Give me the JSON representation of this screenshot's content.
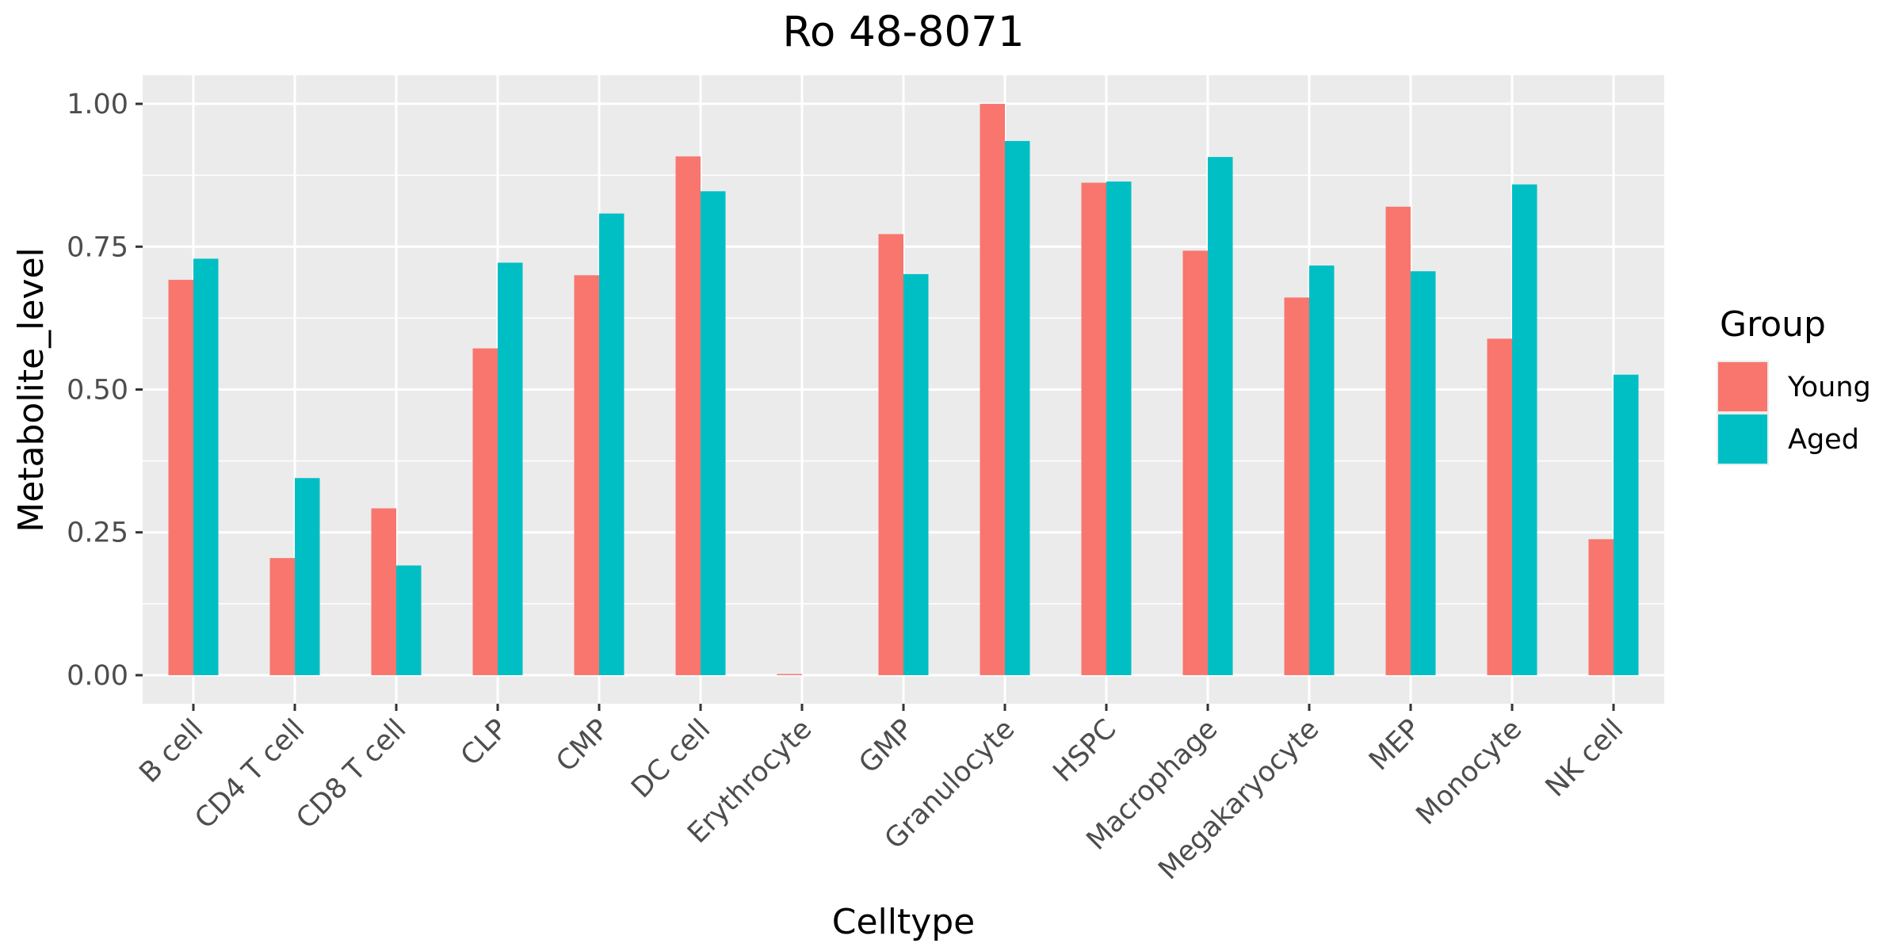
{
  "chart_data": {
    "type": "bar",
    "title": "Ro 48-8071",
    "xlabel": "Celltype",
    "ylabel": "Metabolite_level",
    "categories": [
      "B cell",
      "CD4 T cell",
      "CD8 T cell",
      "CLP",
      "CMP",
      "DC cell",
      "Erythrocyte",
      "GMP",
      "Granulocyte",
      "HSPC",
      "Macrophage",
      "Megakaryocyte",
      "MEP",
      "Monocyte",
      "NK cell"
    ],
    "series": [
      {
        "name": "Young",
        "color": "#F8766D",
        "values": [
          0.692,
          0.205,
          0.292,
          0.572,
          0.7,
          0.908,
          0.002,
          0.772,
          1.0,
          0.862,
          0.743,
          0.661,
          0.82,
          0.589,
          0.238
        ]
      },
      {
        "name": "Aged",
        "color": "#00BFC4",
        "values": [
          0.729,
          0.345,
          0.192,
          0.722,
          0.808,
          0.847,
          0.0,
          0.702,
          0.935,
          0.864,
          0.907,
          0.717,
          0.707,
          0.859,
          0.526
        ]
      }
    ],
    "ylim": [
      -0.05,
      1.05
    ],
    "yticks": [
      0.0,
      0.25,
      0.5,
      0.75,
      1.0
    ],
    "ytick_labels": [
      "0.00",
      "0.25",
      "0.50",
      "0.75",
      "1.00"
    ],
    "grid": true,
    "legend": {
      "title": "Group",
      "position": "right"
    },
    "panel_background": "#EBEBEB",
    "grid_color": "#FFFFFF"
  }
}
